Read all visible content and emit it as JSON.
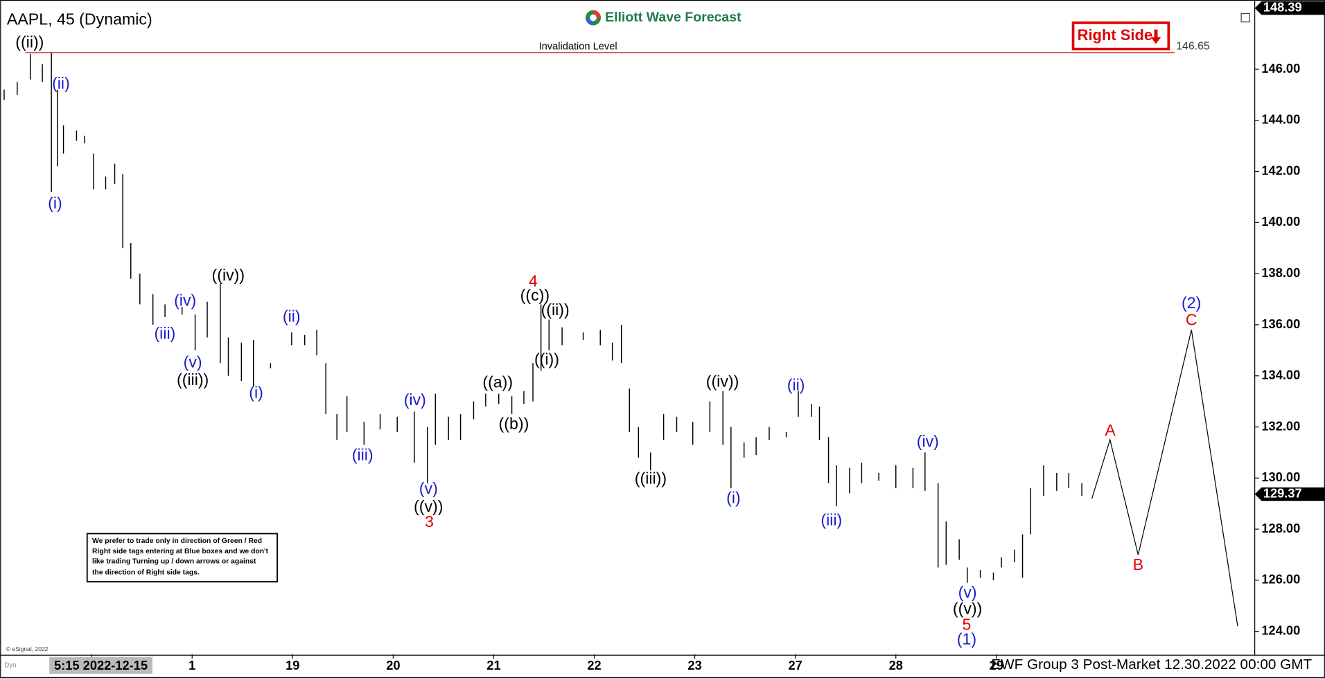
{
  "chart_data": {
    "type": "ohlc",
    "title": "AAPL, 45 (Dynamic)",
    "brand": "Elliott Wave Forecast",
    "footer": "EWF Group 3 Post-Market 12.30.2022 00:00 GMT",
    "copyright": "© eSignal, 2022",
    "mode_tag": "Dyn",
    "note": [
      "We prefer to trade only in direction of Green / Red",
      "Right side tags entering at Blue boxes and we don't",
      "like trading Turning up / down arrows or against",
      "the direction of Right side tags."
    ],
    "right_side": {
      "label": "Right Side",
      "color": "#e00000"
    },
    "invalidation": {
      "label": "Invalidation Level",
      "value": 146.65,
      "color": "#c00000"
    },
    "high_tag": 148.39,
    "last_price": 129.37,
    "bar_color": "#000000",
    "x": [
      -0.87,
      -0.74,
      -0.61,
      -0.49,
      -0.4,
      -0.34,
      -0.28,
      -0.15,
      -0.07,
      0.02,
      0.14,
      0.23,
      0.31,
      0.39,
      0.48,
      0.61,
      0.73,
      0.9,
      1.03,
      1.15,
      1.28,
      1.36,
      1.49,
      1.61,
      1.78,
      1.99,
      2.12,
      2.24,
      2.33,
      2.44,
      2.54,
      2.71,
      2.87,
      3.04,
      3.21,
      3.34,
      3.42,
      3.55,
      3.67,
      3.8,
      3.92,
      4.05,
      4.18,
      4.3,
      4.39,
      4.47,
      4.55,
      4.68,
      4.89,
      5.06,
      5.18,
      5.27,
      5.35,
      5.44,
      5.56,
      5.69,
      5.82,
      5.98,
      6.15,
      6.28,
      6.36,
      6.49,
      6.61,
      6.74,
      6.91,
      7.03,
      7.16,
      7.24,
      7.33,
      7.41,
      7.54,
      7.66,
      7.83,
      8.0,
      8.17,
      8.29,
      8.42,
      8.5,
      8.63,
      8.71,
      8.84,
      8.97,
      9.05,
      9.18,
      9.26,
      9.34,
      9.47,
      9.6,
      9.72,
      9.85
    ],
    "high": [
      145.2,
      145.5,
      146.6,
      146.2,
      146.65,
      145.2,
      143.8,
      143.6,
      143.4,
      142.7,
      141.8,
      142.3,
      141.9,
      139.2,
      138,
      137.2,
      136.8,
      136.7,
      136.4,
      136.9,
      137.6,
      135.5,
      135.3,
      135.4,
      134.5,
      135.7,
      135.6,
      135.8,
      134.5,
      132.5,
      133.2,
      132.2,
      132.5,
      132.4,
      132.6,
      132,
      133.3,
      132.4,
      132.5,
      133,
      133.3,
      133.3,
      133.2,
      133.4,
      134.5,
      136.8,
      136.2,
      135.9,
      135.7,
      135.8,
      135.3,
      136,
      133.5,
      132,
      131,
      132.5,
      132.4,
      132.2,
      133,
      133.4,
      132,
      131.4,
      131.6,
      132,
      131.8,
      133.4,
      132.9,
      132.8,
      131.6,
      130.5,
      130.4,
      130.6,
      130.2,
      130.5,
      130.4,
      131,
      129.8,
      128.3,
      127.6,
      126.5,
      126.4,
      126.3,
      126.9,
      127.2,
      127.8,
      129.6,
      130.5,
      130.2,
      130.2,
      129.8
    ],
    "low": [
      144.8,
      145,
      145.6,
      145.5,
      141.2,
      142.2,
      142.7,
      143.2,
      143.1,
      141.3,
      141.3,
      141.5,
      139,
      137.8,
      136.8,
      136,
      136.3,
      136.4,
      135,
      135.5,
      134.5,
      134,
      133.8,
      133.6,
      134.3,
      135.2,
      135.2,
      134.8,
      132.5,
      131.5,
      131.8,
      131.3,
      131.9,
      131.8,
      130.6,
      129.8,
      131.3,
      131.5,
      131.5,
      132.3,
      132.8,
      132.9,
      132.5,
      132.9,
      133,
      134.2,
      135,
      135.2,
      135.4,
      135.2,
      134.6,
      134.5,
      131.8,
      130.8,
      130.3,
      131.5,
      131.8,
      131.3,
      131.8,
      131.3,
      129.6,
      130.8,
      130.9,
      131.5,
      131.6,
      132.4,
      132.4,
      131.5,
      129.8,
      128.9,
      129.4,
      129.8,
      129.9,
      129.6,
      129.6,
      129.5,
      126.5,
      126.6,
      126.8,
      125.9,
      126.1,
      126,
      126.5,
      126.7,
      126.1,
      127.8,
      129.3,
      129.5,
      129.6,
      129.3
    ],
    "projection": {
      "x": [
        9.95,
        10.13,
        10.41,
        10.94,
        11.4
      ],
      "values": [
        129.2,
        131.5,
        127,
        135.8,
        124.2
      ],
      "color": "#000000"
    },
    "xlim": [
      -0.91,
      11.57
    ],
    "ylim": [
      123.1,
      148.71
    ],
    "xticks": [
      {
        "value": 0,
        "label": "5:15 2022-12-15"
      },
      1,
      {
        "value": 2,
        "label": "19"
      },
      {
        "value": 3,
        "label": "20"
      },
      {
        "value": 4,
        "label": "21"
      },
      {
        "value": 5,
        "label": "22"
      },
      {
        "value": 6,
        "label": "23"
      },
      {
        "value": 7,
        "label": "27"
      },
      {
        "value": 8,
        "label": "28"
      },
      {
        "value": 9,
        "label": "29"
      }
    ],
    "yticks": [
      {
        "value": 124,
        "label": "124.00"
      },
      {
        "value": 126,
        "label": "126.00"
      },
      {
        "value": 128,
        "label": "128.00"
      },
      {
        "value": 130,
        "label": "130.00"
      },
      {
        "value": 132,
        "label": "132.00"
      },
      {
        "value": 134,
        "label": "134.00"
      },
      {
        "value": 136,
        "label": "136.00"
      },
      {
        "value": 138,
        "label": "138.00"
      },
      {
        "value": 140,
        "label": "140.00"
      },
      {
        "value": 142,
        "label": "142.00"
      },
      {
        "value": 144,
        "label": "144.00"
      },
      {
        "value": 146,
        "label": "146.00"
      }
    ],
    "annotations": [
      {
        "text": "((ii))",
        "color": "#000000"
      },
      {
        "text": "(ii)",
        "color": "#1a1acc"
      },
      {
        "text": "(i)",
        "color": "#1a1acc"
      },
      {
        "text": "((iv))",
        "color": "#000000"
      },
      {
        "text": "(iv)",
        "color": "#1a1acc"
      },
      {
        "text": "(iii)",
        "color": "#1a1acc"
      },
      {
        "text": "(v)",
        "color": "#1a1acc"
      },
      {
        "text": "((iii))",
        "color": "#000000"
      },
      {
        "text": "(ii)",
        "color": "#1a1acc"
      },
      {
        "text": "(i)",
        "color": "#1a1acc"
      },
      {
        "text": "(iii)",
        "color": "#1a1acc"
      },
      {
        "text": "(iv)",
        "color": "#1a1acc"
      },
      {
        "text": "(v)",
        "color": "#1a1acc"
      },
      {
        "text": "((v))",
        "color": "#000000"
      },
      {
        "text": "3",
        "color": "#e00000"
      },
      {
        "text": "((a))",
        "color": "#000000"
      },
      {
        "text": "((b))",
        "color": "#000000"
      },
      {
        "text": "4",
        "color": "#e00000"
      },
      {
        "text": "((c))",
        "color": "#000000"
      },
      {
        "text": "((ii))",
        "color": "#000000"
      },
      {
        "text": "((i))",
        "color": "#000000"
      },
      {
        "text": "((iii))",
        "color": "#000000"
      },
      {
        "text": "((iv))",
        "color": "#000000"
      },
      {
        "text": "(i)",
        "color": "#1a1acc"
      },
      {
        "text": "(ii)",
        "color": "#1a1acc"
      },
      {
        "text": "(iii)",
        "color": "#1a1acc"
      },
      {
        "text": "(iv)",
        "color": "#1a1acc"
      },
      {
        "text": "(v)",
        "color": "#1a1acc"
      },
      {
        "text": "((v))",
        "color": "#000000"
      },
      {
        "text": "5",
        "color": "#e00000"
      },
      {
        "text": "(1)",
        "color": "#1a1acc"
      },
      {
        "text": "A",
        "color": "#e00000"
      },
      {
        "text": "B",
        "color": "#e00000"
      },
      {
        "text": "(2)",
        "color": "#1a1acc"
      },
      {
        "text": "C",
        "color": "#e00000"
      }
    ]
  }
}
